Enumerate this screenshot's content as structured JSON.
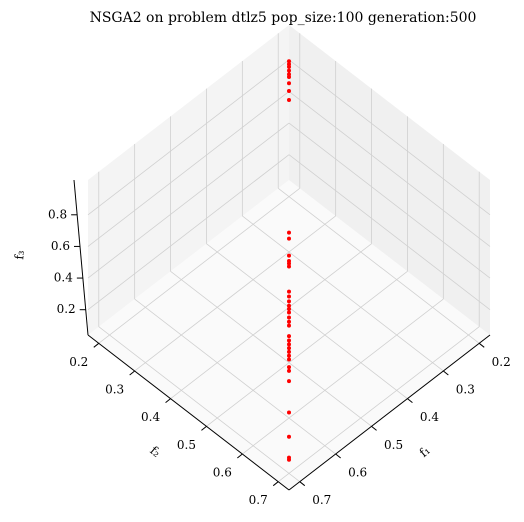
{
  "chart_data": {
    "type": "scatter3d",
    "title": "NSGA2 on problem dtlz5 pop_size:100 generation:500",
    "xlabel": "f₁",
    "ylabel": "f₂",
    "zlabel": "f₃",
    "xlim": [
      0.17,
      0.73
    ],
    "ylim": [
      0.17,
      0.73
    ],
    "zlim": [
      0.04,
      1.02
    ],
    "xticks": [
      0.2,
      0.3,
      0.4,
      0.5,
      0.6,
      0.7
    ],
    "yticks": [
      0.2,
      0.3,
      0.4,
      0.5,
      0.6,
      0.7
    ],
    "zticks": [
      0.2,
      0.4,
      0.6,
      0.8
    ],
    "grid": true,
    "series": [
      {
        "color": "#ff0000",
        "x": [
          0.216,
          0.221,
          0.225,
          0.231,
          0.237,
          0.241,
          0.251,
          0.263,
          0.277,
          0.468,
          0.476,
          0.498,
          0.505,
          0.508,
          0.512,
          0.543,
          0.549,
          0.555,
          0.56,
          0.564,
          0.568,
          0.574,
          0.579,
          0.583,
          0.595,
          0.6,
          0.604,
          0.608,
          0.612,
          0.616,
          0.62,
          0.628,
          0.632,
          0.642,
          0.67,
          0.688,
          0.7,
          0.701
        ],
        "y": [
          0.216,
          0.221,
          0.225,
          0.231,
          0.237,
          0.241,
          0.251,
          0.263,
          0.277,
          0.468,
          0.476,
          0.498,
          0.505,
          0.508,
          0.512,
          0.543,
          0.549,
          0.555,
          0.56,
          0.564,
          0.568,
          0.574,
          0.579,
          0.583,
          0.595,
          0.6,
          0.604,
          0.608,
          0.612,
          0.616,
          0.62,
          0.628,
          0.632,
          0.642,
          0.67,
          0.688,
          0.7,
          0.701
        ],
        "z": [
          0.952,
          0.95,
          0.948,
          0.945,
          0.942,
          0.94,
          0.935,
          0.928,
          0.92,
          0.75,
          0.74,
          0.71,
          0.7,
          0.695,
          0.69,
          0.64,
          0.63,
          0.62,
          0.61,
          0.603,
          0.595,
          0.585,
          0.575,
          0.565,
          0.54,
          0.53,
          0.52,
          0.51,
          0.5,
          0.49,
          0.48,
          0.46,
          0.45,
          0.42,
          0.32,
          0.23,
          0.14,
          0.13
        ]
      }
    ]
  }
}
